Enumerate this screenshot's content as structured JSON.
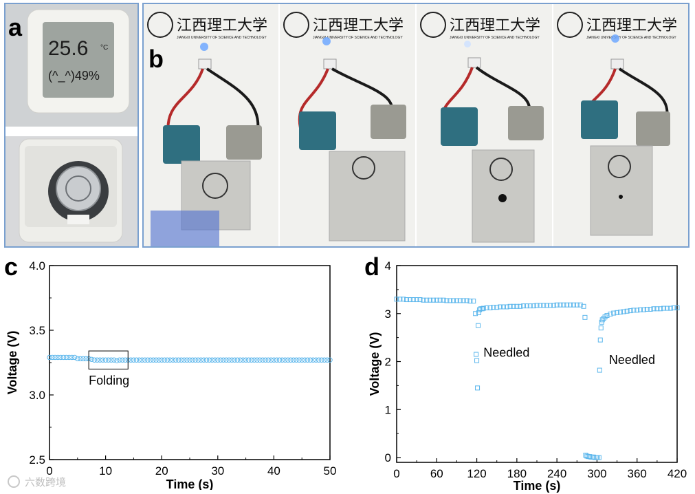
{
  "panels": {
    "a": "a",
    "b": "b",
    "c": "c",
    "d": "d"
  },
  "photo_a": {
    "display_temp": "25.6",
    "temp_unit": "°C",
    "display_humidity": "(^_^)49%"
  },
  "photo_b": {
    "logo_cn": "江西理工大学",
    "logo_en": "JIANGXI UNIVERSITY OF SCIENCE AND TECHNOLOGY"
  },
  "colors": {
    "marker": "#5bb6ec",
    "frame": "#7aa0cf"
  },
  "chart_data": [
    {
      "type": "scatter",
      "panel": "c",
      "xlabel": "Time (s)",
      "ylabel": "Voltage (V)",
      "xlim": [
        0,
        50
      ],
      "ylim": [
        2.5,
        4.0
      ],
      "xticks": [
        0,
        10,
        20,
        30,
        40,
        50
      ],
      "yticks": [
        2.5,
        3.0,
        3.5,
        4.0
      ],
      "ytick_labels": [
        "2.5",
        "3.0",
        "3.5",
        "4.0"
      ],
      "marker": "open-circle",
      "series": [
        {
          "x": [
            0,
            0.5,
            1,
            1.5,
            2,
            2.5,
            3,
            3.5,
            4,
            4.5,
            5,
            5.5,
            6,
            6.5,
            7,
            7.5,
            8,
            8.5,
            9,
            9.5,
            10,
            10.5,
            11,
            11.5,
            12,
            12.5,
            13,
            13.5,
            14,
            14.5,
            15,
            15.5,
            16,
            16.5,
            17,
            17.5,
            18,
            18.5,
            19,
            19.5,
            20,
            20.5,
            21,
            21.5,
            22,
            22.5,
            23,
            23.5,
            24,
            24.5,
            25,
            25.5,
            26,
            26.5,
            27,
            27.5,
            28,
            28.5,
            29,
            29.5,
            30,
            30.5,
            31,
            31.5,
            32,
            32.5,
            33,
            33.5,
            34,
            34.5,
            35,
            35.5,
            36,
            36.5,
            37,
            37.5,
            38,
            38.5,
            39,
            39.5,
            40,
            40.5,
            41,
            41.5,
            42,
            42.5,
            43,
            43.5,
            44,
            44.5,
            45,
            45.5,
            46,
            46.5,
            47,
            47.5,
            48,
            48.5,
            49,
            49.5,
            50
          ],
          "y": [
            3.29,
            3.29,
            3.29,
            3.29,
            3.29,
            3.29,
            3.29,
            3.29,
            3.29,
            3.29,
            3.28,
            3.28,
            3.28,
            3.28,
            3.28,
            3.275,
            3.27,
            3.27,
            3.27,
            3.27,
            3.27,
            3.27,
            3.27,
            3.27,
            3.265,
            3.27,
            3.27,
            3.27,
            3.27,
            3.27,
            3.27,
            3.27,
            3.27,
            3.27,
            3.27,
            3.27,
            3.27,
            3.27,
            3.27,
            3.27,
            3.27,
            3.27,
            3.27,
            3.27,
            3.27,
            3.27,
            3.27,
            3.27,
            3.27,
            3.27,
            3.27,
            3.27,
            3.27,
            3.27,
            3.27,
            3.27,
            3.27,
            3.27,
            3.27,
            3.27,
            3.27,
            3.27,
            3.27,
            3.27,
            3.27,
            3.27,
            3.27,
            3.27,
            3.27,
            3.27,
            3.27,
            3.27,
            3.27,
            3.27,
            3.27,
            3.27,
            3.27,
            3.27,
            3.27,
            3.27,
            3.27,
            3.27,
            3.27,
            3.27,
            3.27,
            3.27,
            3.27,
            3.27,
            3.27,
            3.27,
            3.27,
            3.27,
            3.27,
            3.27,
            3.27,
            3.27,
            3.27,
            3.27,
            3.27,
            3.27,
            3.27
          ]
        }
      ],
      "annotation": {
        "text": "Folding",
        "box_x": [
          7,
          14
        ],
        "box_y": [
          3.2,
          3.34
        ],
        "text_x": 7,
        "text_y": 3.08
      }
    },
    {
      "type": "scatter",
      "panel": "d",
      "xlabel": "Time (s)",
      "ylabel": "Voltage (V)",
      "xlim": [
        0,
        420
      ],
      "ylim": [
        -0.1,
        4.0
      ],
      "xticks": [
        0,
        60,
        120,
        180,
        240,
        300,
        360,
        420
      ],
      "yticks": [
        0,
        1,
        2,
        3,
        4
      ],
      "marker": "open-square",
      "series": [
        {
          "x": [
            0,
            5,
            10,
            15,
            20,
            25,
            30,
            35,
            40,
            45,
            50,
            55,
            60,
            65,
            70,
            75,
            80,
            85,
            90,
            95,
            100,
            105,
            110,
            115,
            118,
            119,
            120,
            121,
            122,
            123,
            124,
            126,
            128,
            130,
            135,
            140,
            145,
            150,
            155,
            160,
            165,
            170,
            175,
            180,
            185,
            190,
            195,
            200,
            205,
            210,
            215,
            220,
            225,
            230,
            235,
            240,
            245,
            250,
            255,
            260,
            265,
            270,
            275,
            280,
            282,
            283,
            285,
            287,
            289,
            291,
            293,
            295,
            297,
            299,
            301,
            303,
            304,
            305,
            306,
            307,
            308,
            310,
            312,
            315,
            320,
            325,
            330,
            335,
            340,
            345,
            350,
            355,
            360,
            365,
            370,
            375,
            380,
            385,
            390,
            395,
            400,
            405,
            410,
            415,
            420
          ],
          "y": [
            3.3,
            3.3,
            3.3,
            3.29,
            3.29,
            3.29,
            3.29,
            3.29,
            3.28,
            3.28,
            3.28,
            3.28,
            3.28,
            3.28,
            3.28,
            3.27,
            3.27,
            3.27,
            3.27,
            3.27,
            3.27,
            3.27,
            3.26,
            3.26,
            3.0,
            2.15,
            2.02,
            1.45,
            2.75,
            3.02,
            3.08,
            3.1,
            3.1,
            3.11,
            3.12,
            3.12,
            3.13,
            3.13,
            3.14,
            3.14,
            3.14,
            3.15,
            3.15,
            3.15,
            3.15,
            3.16,
            3.16,
            3.16,
            3.16,
            3.17,
            3.17,
            3.17,
            3.17,
            3.17,
            3.17,
            3.18,
            3.18,
            3.18,
            3.18,
            3.18,
            3.18,
            3.18,
            3.18,
            3.15,
            2.92,
            0.05,
            0.03,
            0.02,
            0.02,
            0.01,
            0.01,
            0.01,
            0.0,
            0.0,
            0.0,
            0.0,
            1.82,
            2.45,
            2.7,
            2.82,
            2.87,
            2.9,
            2.93,
            2.96,
            2.99,
            3.01,
            3.02,
            3.03,
            3.04,
            3.05,
            3.06,
            3.07,
            3.07,
            3.08,
            3.08,
            3.09,
            3.09,
            3.1,
            3.1,
            3.1,
            3.11,
            3.11,
            3.11,
            3.12,
            3.12
          ]
        }
      ],
      "annotations": [
        {
          "text": "Needled",
          "x": 130,
          "y": 2.1
        },
        {
          "text": "Needled",
          "x": 318,
          "y": 1.95
        }
      ]
    }
  ],
  "watermark": "六数跨境"
}
